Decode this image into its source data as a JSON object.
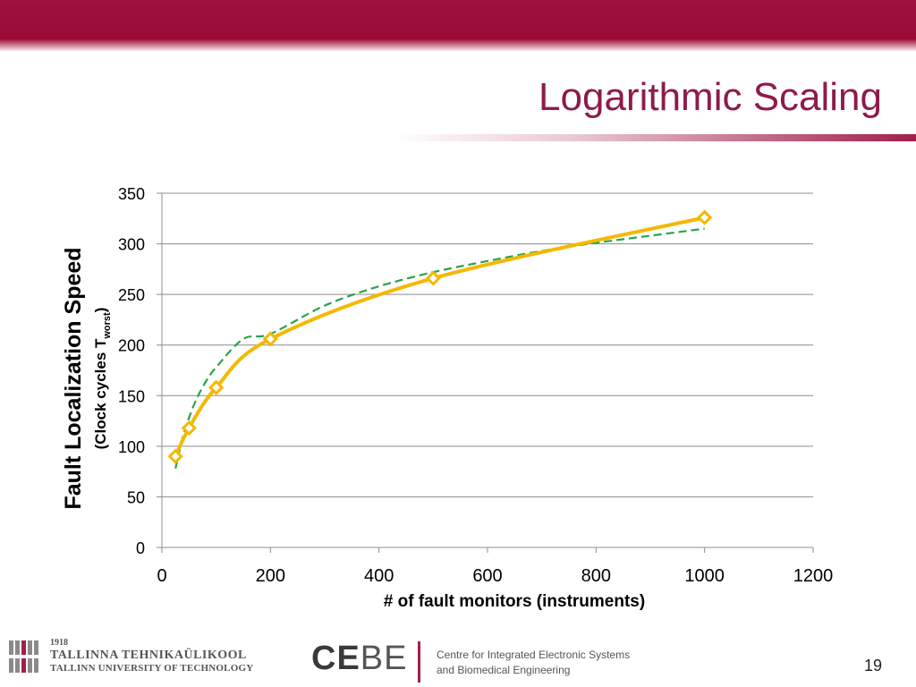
{
  "slide": {
    "title": "Logarithmic Scaling",
    "page_number": "19"
  },
  "footer": {
    "ttu_year": "1918",
    "ttu_name_et": "TALLINNA TEHNIKAÜLIKOOL",
    "ttu_name_en": "TALLINN UNIVERSITY OF TECHNOLOGY",
    "cebe_part1": "CE",
    "cebe_part2": "BE",
    "cebe_line1": "Centre for Integrated Electronic Systems",
    "cebe_line2": "and Biomedical Engineering"
  },
  "colors": {
    "brand": "#9a0a36",
    "title": "#8e1b4a",
    "series_measured": "#f5b800",
    "series_fit": "#2aa34a",
    "gridline": "#8c8c8c"
  },
  "chart_data": {
    "type": "scatter",
    "xlabel": "# of fault monitors (instruments)",
    "ylabel": "Fault Localization Speed",
    "ylabel_line2_prefix": "(Clock cycles T",
    "ylabel_line2_sub": "worst",
    "ylabel_line2_suffix": ")",
    "xlim": [
      0,
      1200
    ],
    "ylim": [
      0,
      350
    ],
    "xticks": [
      "0",
      "200",
      "400",
      "600",
      "800",
      "1000",
      "1200"
    ],
    "yticks": [
      "0",
      "50",
      "100",
      "150",
      "200",
      "250",
      "300",
      "350"
    ],
    "grid": "horizontal",
    "series": [
      {
        "style": "solid smoothed line with diamond markers",
        "color": "#f5b800",
        "x": [
          25,
          50,
          100,
          200,
          500,
          1000
        ],
        "y": [
          90,
          118,
          158,
          206,
          266,
          326
        ]
      },
      {
        "style": "dashed logarithmic trendline",
        "color": "#2aa34a",
        "x": [
          25,
          40,
          60,
          80,
          100,
          150,
          200,
          300,
          400,
          500,
          600,
          700,
          800,
          900,
          1000
        ],
        "y": [
          78,
          112,
          142,
          163,
          178,
          206,
          211,
          239,
          258,
          272,
          283,
          293,
          301,
          308,
          315
        ]
      }
    ]
  }
}
